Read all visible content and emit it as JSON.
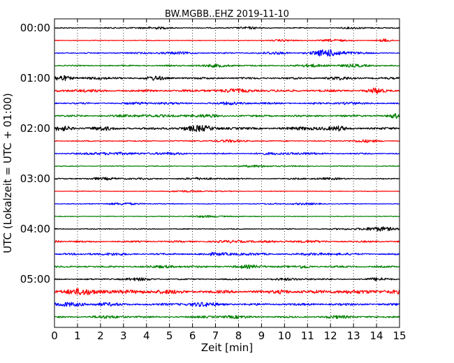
{
  "chart_data": {
    "type": "line",
    "title": "BW.MGBB..EHZ 2019-11-10",
    "xlabel": "Zeit  [min]",
    "ylabel": "UTC (Lokalzeit = UTC + 01:00)",
    "xlim": [
      0,
      15
    ],
    "x_ticks": [
      "0",
      "1",
      "2",
      "3",
      "4",
      "5",
      "6",
      "7",
      "8",
      "9",
      "10",
      "11",
      "12",
      "13",
      "14",
      "15"
    ],
    "y_ticks": [
      "00:00",
      "01:00",
      "02:00",
      "03:00",
      "04:00",
      "05:00"
    ],
    "grid": "vertical dotted lines at each minute",
    "colors": [
      "#000000",
      "#ff0000",
      "#0000ff",
      "#008000"
    ],
    "series": [
      {
        "start": "00:00",
        "color": "#000000",
        "amp": 0.7,
        "bursts": [
          [
            4.1,
            0.8,
            1.3
          ],
          [
            8.3,
            0.6,
            1.2
          ],
          [
            13.3,
            0.5,
            1.2
          ]
        ]
      },
      {
        "start": "00:15",
        "color": "#ff0000",
        "amp": 0.5,
        "bursts": [
          [
            9.8,
            0.5,
            1.1
          ],
          [
            12.2,
            0.6,
            1.3
          ],
          [
            14.4,
            0.2,
            2.2
          ]
        ]
      },
      {
        "start": "00:30",
        "color": "#0000ff",
        "amp": 0.9,
        "bursts": [
          [
            12.1,
            0.6,
            5.5
          ],
          [
            5.0,
            0.8,
            1.3
          ],
          [
            9.5,
            0.6,
            1.3
          ]
        ]
      },
      {
        "start": "00:45",
        "color": "#008000",
        "amp": 0.9,
        "bursts": [
          [
            7.0,
            0.8,
            1.5
          ],
          [
            11.2,
            0.6,
            1.6
          ],
          [
            13.0,
            0.7,
            1.5
          ]
        ]
      },
      {
        "start": "01:00",
        "color": "#000000",
        "amp": 1.4,
        "bursts": [
          [
            0.3,
            0.25,
            3.0
          ],
          [
            4.4,
            0.3,
            2.2
          ],
          [
            1.6,
            0.4,
            1.5
          ],
          [
            12.3,
            0.4,
            1.4
          ]
        ]
      },
      {
        "start": "01:15",
        "color": "#ff0000",
        "amp": 1.6,
        "bursts": [
          [
            7.7,
            0.8,
            1.6
          ],
          [
            14.0,
            0.25,
            3.0
          ],
          [
            1.1,
            0.4,
            1.3
          ]
        ]
      },
      {
        "start": "01:30",
        "color": "#0000ff",
        "amp": 1.2,
        "bursts": [
          [
            12.7,
            0.3,
            2.0
          ],
          [
            4.2,
            0.6,
            1.3
          ],
          [
            7.9,
            0.6,
            1.4
          ]
        ]
      },
      {
        "start": "01:45",
        "color": "#008000",
        "amp": 1.4,
        "bursts": [
          [
            3.8,
            0.5,
            1.8
          ],
          [
            14.8,
            0.2,
            2.6
          ],
          [
            6.2,
            0.6,
            1.5
          ]
        ]
      },
      {
        "start": "02:00",
        "color": "#000000",
        "amp": 1.6,
        "bursts": [
          [
            6.3,
            0.7,
            3.2
          ],
          [
            0.4,
            0.3,
            2.5
          ],
          [
            11.3,
            0.6,
            2.2
          ],
          [
            12.4,
            0.2,
            2.0
          ],
          [
            2.0,
            0.4,
            1.8
          ]
        ]
      },
      {
        "start": "02:15",
        "color": "#ff0000",
        "amp": 0.8,
        "bursts": [
          [
            13.3,
            0.5,
            1.8
          ],
          [
            7.5,
            0.7,
            1.3
          ]
        ]
      },
      {
        "start": "02:30",
        "color": "#0000ff",
        "amp": 1.0,
        "bursts": [
          [
            2.2,
            0.5,
            2.4
          ],
          [
            10.2,
            0.8,
            1.5
          ],
          [
            4.5,
            0.8,
            1.3
          ]
        ]
      },
      {
        "start": "02:45",
        "color": "#008000",
        "amp": 0.6,
        "bursts": [
          [
            9.0,
            0.9,
            1.2
          ]
        ]
      },
      {
        "start": "03:00",
        "color": "#000000",
        "amp": 0.7,
        "bursts": [
          [
            2.5,
            1.0,
            1.4
          ],
          [
            6.5,
            0.8,
            1.3
          ],
          [
            11.5,
            0.8,
            1.2
          ]
        ]
      },
      {
        "start": "03:15",
        "color": "#ff0000",
        "amp": 0.5,
        "bursts": [
          [
            6.0,
            0.8,
            1.1
          ]
        ]
      },
      {
        "start": "03:30",
        "color": "#0000ff",
        "amp": 0.6,
        "bursts": [
          [
            3.0,
            0.8,
            1.3
          ],
          [
            10.5,
            0.8,
            1.2
          ]
        ]
      },
      {
        "start": "03:45",
        "color": "#008000",
        "amp": 0.5,
        "bursts": [
          [
            6.8,
            0.8,
            1.2
          ]
        ]
      },
      {
        "start": "04:00",
        "color": "#000000",
        "amp": 0.7,
        "bursts": [
          [
            14.4,
            0.5,
            2.6
          ],
          [
            13.2,
            0.6,
            1.4
          ]
        ]
      },
      {
        "start": "04:15",
        "color": "#ff0000",
        "amp": 1.2,
        "bursts": [
          [
            0.1,
            0.15,
            2.2
          ],
          [
            8.2,
            0.7,
            1.3
          ],
          [
            10.8,
            0.5,
            1.3
          ]
        ]
      },
      {
        "start": "04:30",
        "color": "#0000ff",
        "amp": 1.2,
        "bursts": [
          [
            7.6,
            0.8,
            1.7
          ],
          [
            11.8,
            0.6,
            1.5
          ],
          [
            2.2,
            0.6,
            1.3
          ]
        ]
      },
      {
        "start": "04:45",
        "color": "#008000",
        "amp": 1.3,
        "bursts": [
          [
            10.9,
            0.2,
            2.4
          ],
          [
            5.0,
            0.5,
            1.6
          ],
          [
            8.6,
            0.6,
            1.5
          ]
        ]
      },
      {
        "start": "05:00",
        "color": "#000000",
        "amp": 1.0,
        "bursts": [
          [
            14.2,
            0.4,
            1.8
          ],
          [
            3.5,
            0.6,
            1.5
          ],
          [
            10.5,
            0.6,
            1.4
          ]
        ]
      },
      {
        "start": "05:15",
        "color": "#ff0000",
        "amp": 2.2,
        "bursts": [
          [
            1.2,
            1.0,
            2.8
          ],
          [
            10.0,
            0.2,
            2.6
          ],
          [
            12.5,
            0.5,
            1.6
          ],
          [
            14.5,
            0.5,
            1.8
          ],
          [
            4.5,
            0.6,
            1.6
          ]
        ]
      },
      {
        "start": "05:30",
        "color": "#0000ff",
        "amp": 1.6,
        "bursts": [
          [
            6.3,
            0.6,
            2.2
          ],
          [
            0.5,
            0.6,
            1.8
          ],
          [
            2.0,
            0.5,
            1.7
          ]
        ]
      },
      {
        "start": "05:45",
        "color": "#008000",
        "amp": 1.2,
        "bursts": [
          [
            2.5,
            0.6,
            1.5
          ],
          [
            7.5,
            0.7,
            1.5
          ],
          [
            12.5,
            0.6,
            1.4
          ]
        ]
      }
    ]
  }
}
